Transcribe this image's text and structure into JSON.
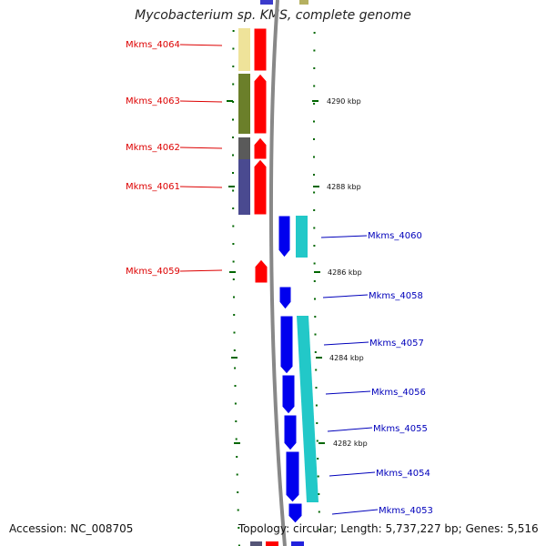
{
  "title": "Mycobacterium sp. KMS, complete genome",
  "accession": "Accession: NC_008705",
  "topology": "Topology: circular; Length: 5,737,227 bp; Genes: 5,516",
  "colors": {
    "forward_label": "#dd0000",
    "reverse_label": "#0000bb",
    "forward_gene": "#ff0000",
    "reverse_gene": "#0000ee",
    "backbone": "#888888",
    "tick": "#006600"
  },
  "ticks": [
    {
      "label": "4290 kbp"
    },
    {
      "label": "4288 kbp"
    },
    {
      "label": "4286 kbp"
    },
    {
      "label": "4284 kbp"
    },
    {
      "label": "4282 kbp"
    }
  ],
  "forward_genes": [
    {
      "label": "Mkms_4064"
    },
    {
      "label": "Mkms_4063"
    },
    {
      "label": "Mkms_4062"
    },
    {
      "label": "Mkms_4061"
    },
    {
      "label": "Mkms_4059"
    }
  ],
  "reverse_genes": [
    {
      "label": "Mkms_4060"
    },
    {
      "label": "Mkms_4058"
    },
    {
      "label": "Mkms_4057"
    },
    {
      "label": "Mkms_4056"
    },
    {
      "label": "Mkms_4055"
    },
    {
      "label": "Mkms_4054"
    },
    {
      "label": "Mkms_4053"
    }
  ]
}
